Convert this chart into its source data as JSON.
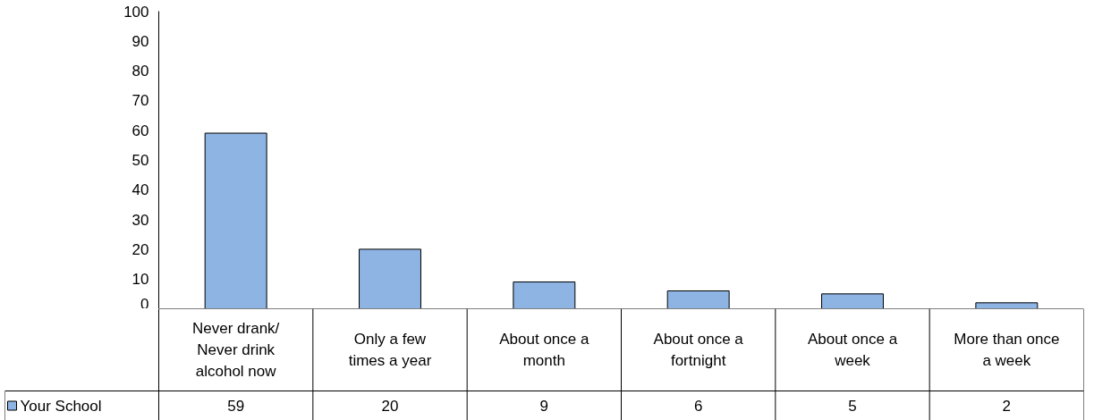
{
  "chart_data": {
    "type": "bar",
    "categories": [
      "Never drank/ Never drink alcohol now",
      "Only a few times a year",
      "About once a month",
      "About once a fortnight",
      "About once a week",
      "More than once a week"
    ],
    "series": [
      {
        "name": "Your School",
        "color": "#8db4e2",
        "values": [
          59,
          20,
          9,
          6,
          5,
          2
        ]
      }
    ],
    "ylim": [
      0,
      100
    ],
    "yticks": [
      0,
      10,
      20,
      30,
      40,
      50,
      60,
      70,
      80,
      90,
      100
    ],
    "data_labels": true,
    "legend": "bottom left"
  }
}
